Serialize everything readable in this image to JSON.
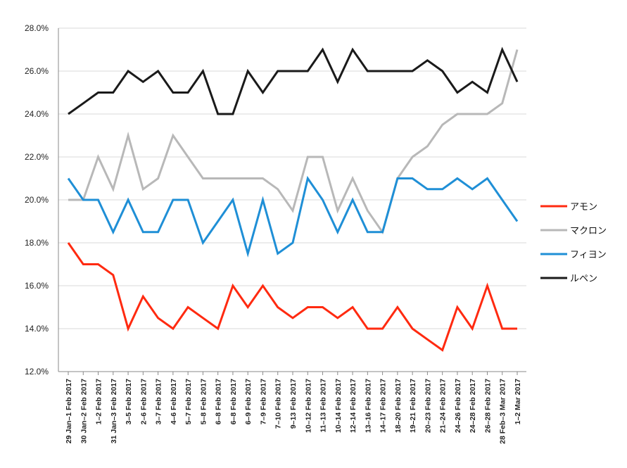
{
  "chart_data": {
    "type": "line",
    "title": "",
    "xlabel": "",
    "ylabel": "",
    "ylim": [
      12.0,
      28.0
    ],
    "yticks": [
      "12.0%",
      "14.0%",
      "16.0%",
      "18.0%",
      "20.0%",
      "22.0%",
      "24.0%",
      "26.0%",
      "28.0%"
    ],
    "ytick_values": [
      12,
      14,
      16,
      18,
      20,
      22,
      24,
      26,
      28
    ],
    "grid": true,
    "legend_position": "right",
    "categories": [
      "29 Jan–1 Feb 2017",
      "30 Jan–2 Feb 2017",
      "1–2 Feb 2017",
      "31 Jan–3 Feb 2017",
      "3–5 Feb 2017",
      "2–6 Feb 2017",
      "3–7 Feb 2017",
      "4–6 Feb 2017",
      "5–7 Feb 2017",
      "5–8 Feb 2017",
      "6–8 Feb 2017",
      "6–8 Feb 2017",
      "6–9 Feb 2017",
      "7–9 Feb 2017",
      "7–10 Feb 2017",
      "9–13 Feb 2017",
      "10–12 Feb 2017",
      "11–13 Feb 2017",
      "10–14 Feb 2017",
      "12–14 Feb 2017",
      "13–16 Feb 2017",
      "14–17 Feb 2017",
      "18–20 Feb 2017",
      "19–21 Feb 2017",
      "20–23 Feb 2017",
      "21–24 Feb 2017",
      "24–26 Feb 2017",
      "24–28 Feb 2017",
      "26–28 Feb 2017",
      "28 Feb–3 Mar 2017",
      "1–2 Mar 2017"
    ],
    "series": [
      {
        "name": "アモン",
        "color": "#ff2a10",
        "values": [
          18,
          17,
          17,
          16.5,
          14,
          15.5,
          14.5,
          14,
          15,
          14.5,
          14,
          16,
          15,
          16,
          15,
          14.5,
          15,
          15,
          14.5,
          15,
          14,
          14,
          15,
          14,
          13.5,
          13,
          15,
          14,
          16,
          14,
          14
        ]
      },
      {
        "name": "マクロン",
        "color": "#b8b8b8",
        "values": [
          20,
          20,
          22,
          20.5,
          23,
          20.5,
          21,
          23,
          22,
          21,
          21,
          21,
          21,
          21,
          20.5,
          19.5,
          22,
          22,
          19.5,
          21,
          19.5,
          18.5,
          21,
          22,
          22.5,
          23.5,
          24,
          24,
          24,
          24.5,
          27
        ]
      },
      {
        "name": "フィヨン",
        "color": "#1f8fd6",
        "values": [
          21,
          20,
          20,
          18.5,
          20,
          18.5,
          18.5,
          20,
          20,
          18,
          19,
          20,
          17.5,
          20,
          17.5,
          18,
          21,
          20,
          18.5,
          20,
          18.5,
          18.5,
          21,
          21,
          20.5,
          20.5,
          21,
          20.5,
          21,
          20,
          19
        ]
      },
      {
        "name": "ルペン",
        "color": "#1a1a1a",
        "values": [
          24,
          24.5,
          25,
          25,
          26,
          25.5,
          26,
          25,
          25,
          26,
          24,
          24,
          26,
          25,
          26,
          26,
          26,
          27,
          25.5,
          27,
          26,
          26,
          26,
          26,
          26.5,
          26,
          25,
          25.5,
          25,
          27,
          25.5
        ]
      }
    ]
  }
}
